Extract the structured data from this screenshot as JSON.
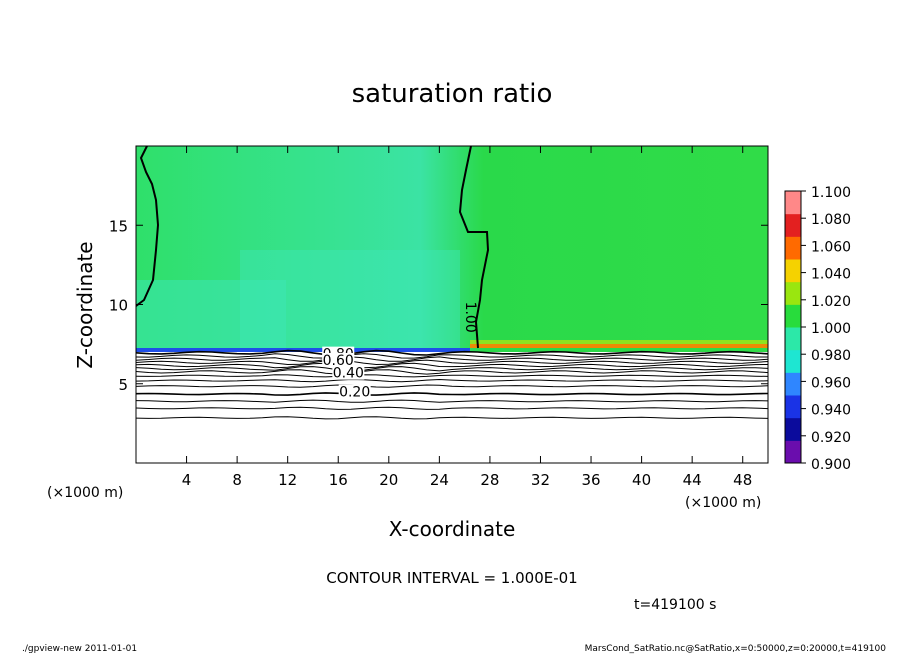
{
  "chart_data": {
    "type": "heatmap",
    "title": "saturation ratio",
    "xlabel": "X-coordinate",
    "ylabel": "Z-coordinate",
    "x_unit": "(×1000 m)",
    "y_unit": "(×1000 m)",
    "xlim": [
      0,
      50
    ],
    "ylim": [
      0,
      20
    ],
    "x_ticks": [
      4,
      8,
      12,
      16,
      20,
      24,
      28,
      32,
      36,
      40,
      44,
      48
    ],
    "y_ticks": [
      5,
      10,
      15
    ],
    "colorbar": {
      "levels": [
        "0.900",
        "0.920",
        "0.940",
        "0.960",
        "0.980",
        "1.000",
        "1.020",
        "1.040",
        "1.060",
        "1.080",
        "1.100"
      ],
      "colors": [
        "#6a0dad",
        "#0b0b9c",
        "#1a33e6",
        "#2f86ff",
        "#1ee6d2",
        "#2ce8a8",
        "#28dc3c",
        "#9ae60f",
        "#f5d200",
        "#ff6a00",
        "#e32020",
        "#ff8888"
      ]
    },
    "contour_labels": [
      {
        "text": "1.00",
        "x": 26.5,
        "z": 9.2
      },
      {
        "text": "0.80",
        "x": 16.0,
        "z": 6.9
      },
      {
        "text": "0.60",
        "x": 16.0,
        "z": 6.5
      },
      {
        "text": "0.40",
        "x": 16.8,
        "z": 5.7
      },
      {
        "text": "0.20",
        "x": 17.3,
        "z": 4.5
      }
    ],
    "contour_interval_text": "CONTOUR INTERVAL = 1.000E-01",
    "time_text": "t=419100 s"
  },
  "footer": {
    "left": "./gpview-new  2011-01-01",
    "right": "MarsCond_SatRatio.nc@SatRatio,x=0:50000,z=0:20000,t=419100"
  },
  "colors": {
    "field_green": "#28dc3c",
    "field_light_green": "#30e28a",
    "below_layer": "#ffffff"
  }
}
